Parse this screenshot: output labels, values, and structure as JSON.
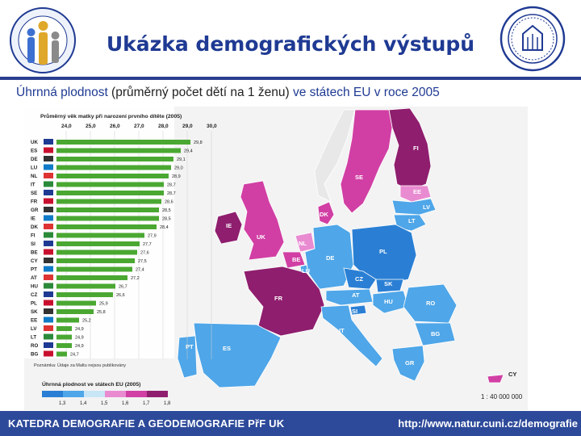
{
  "header": {
    "title": "Ukázka demografických výstupů",
    "left_logo_icon": "demography-society-logo-icon",
    "right_logo_icon": "charles-university-seal-icon"
  },
  "subtitle": {
    "part1": "Úhrnná plodnost",
    "part2": " (průměrný počet dětí na 1 ženu) ",
    "part3": "ve státech EU v roce 2005"
  },
  "footer": {
    "left": "KATEDRA DEMOGRAFIE A GEODEMOGRAFIE PřF UK",
    "right": "http://www.natur.cuni.cz/demografie"
  },
  "chart_data": {
    "type": "bar",
    "title": "Průměrný věk matky při narození prvního dítěte (2005)",
    "ticks": [
      "24,0",
      "25,0",
      "26,0",
      "27,0",
      "28,0",
      "29,0",
      "30,0"
    ],
    "xlim": [
      24,
      30
    ],
    "categories": [
      "UK",
      "ES",
      "DE",
      "LU",
      "NL",
      "IT",
      "SE",
      "FR",
      "GR",
      "IE",
      "DK",
      "FI",
      "SI",
      "BE",
      "CY",
      "PT",
      "AT",
      "HU",
      "CZ",
      "PL",
      "SK",
      "EE",
      "LV",
      "LT",
      "RO",
      "BG"
    ],
    "values": [
      29.8,
      29.4,
      29.1,
      29.0,
      28.9,
      28.7,
      28.7,
      28.6,
      28.5,
      28.5,
      28.4,
      27.9,
      27.7,
      27.6,
      27.5,
      27.4,
      27.2,
      26.7,
      26.6,
      25.9,
      25.8,
      25.2,
      24.9,
      24.9,
      24.9,
      24.7
    ],
    "labels": [
      "29,8",
      "29,4",
      "29,1",
      "29,0",
      "28,9",
      "28,7",
      "28,7",
      "28,6",
      "28,5",
      "28,5",
      "28,4",
      "27,9",
      "27,7",
      "27,6",
      "27,5",
      "27,4",
      "27,2",
      "26,7",
      "26,6",
      "25,9",
      "25,8",
      "25,2",
      "24,9",
      "24,9",
      "24,9",
      "24,7"
    ],
    "note": "Poznámka: Údaje za Maltu nejsou publikovány"
  },
  "legend": {
    "title": "Úhrnná plodnost ve státech EU (2005)",
    "ticks": [
      "1,3",
      "1,4",
      "1,5",
      "1,6",
      "1,7",
      "1,8"
    ],
    "colors": [
      "#2a7fd4",
      "#4fa6e8",
      "#c9e6f7",
      "#e98bd1",
      "#d13fa4",
      "#8f1e6e"
    ]
  },
  "map": {
    "scale": "1 : 40 000 000",
    "countries": [
      "FI",
      "SE",
      "EE",
      "LV",
      "LT",
      "IE",
      "UK",
      "DK",
      "NL",
      "BE",
      "LU",
      "DE",
      "PL",
      "CZ",
      "SK",
      "AT",
      "HU",
      "SI",
      "FR",
      "RO",
      "IT",
      "BG",
      "PT",
      "ES",
      "GR",
      "CY"
    ]
  }
}
